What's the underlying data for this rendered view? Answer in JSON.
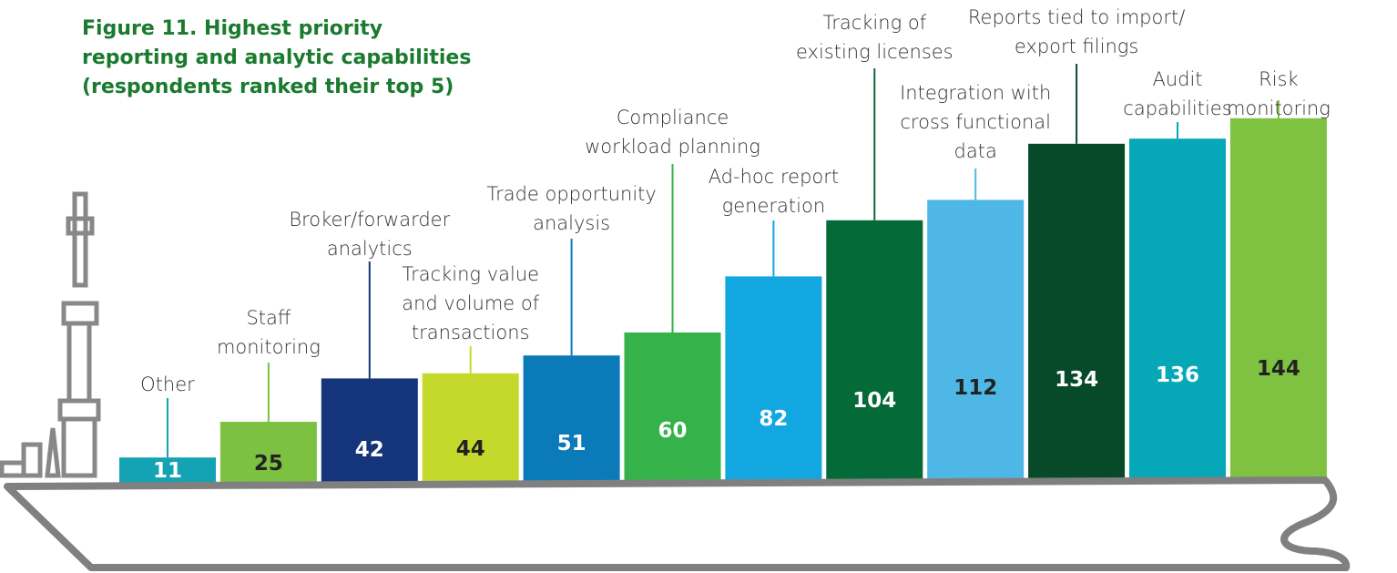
{
  "chart_data": {
    "type": "bar",
    "title": "Figure 11. Highest priority\nreporting and analytic capabilities\n(respondents ranked their top 5)",
    "categories": [
      "Other",
      "Staff\nmonitoring",
      "Broker/forwarder\nanalytics",
      "Tracking value\nand volume of\ntransactions",
      "Trade opportunity\nanalysis",
      "Compliance\nworkload planning",
      "Ad-hoc report\ngeneration",
      "Tracking of\nexisting licenses",
      "Integration with\ncross functional\ndata",
      "Reports tied to import/\nexport filings",
      "Audit\ncapabilities",
      "Risk\nmonitoring"
    ],
    "values": [
      11,
      25,
      42,
      44,
      51,
      60,
      82,
      104,
      112,
      134,
      136,
      144
    ],
    "colors": [
      "#14a3b4",
      "#7cc142",
      "#14357a",
      "#c5d92d",
      "#0a7ab8",
      "#35b24a",
      "#12a7e0",
      "#046a38",
      "#4fb7e5",
      "#064a2a",
      "#06a8b8",
      "#7fc241"
    ]
  }
}
